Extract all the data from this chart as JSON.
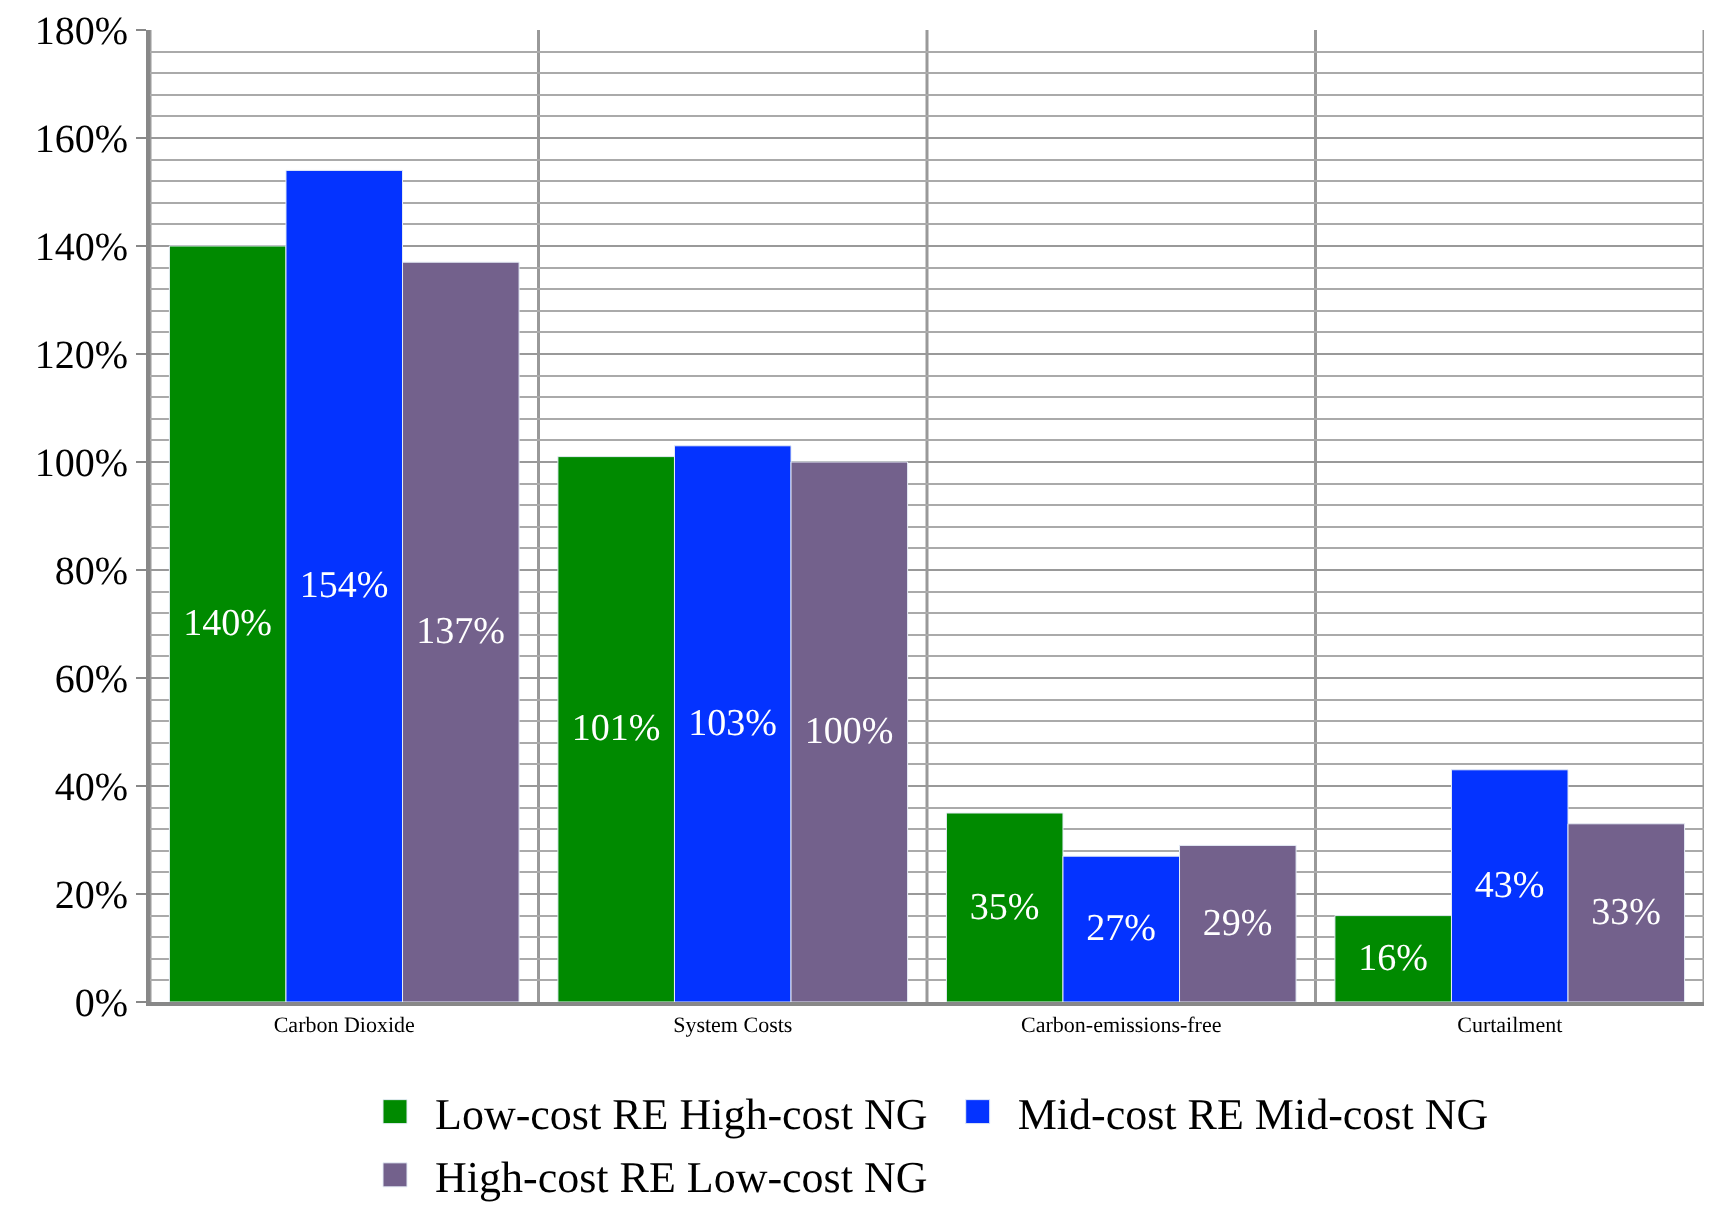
{
  "chart_data": {
    "type": "bar",
    "categories": [
      "Carbon Dioxide",
      "System Costs",
      "Carbon-emissions-free",
      "Curtailment"
    ],
    "series": [
      {
        "name": "Low-cost RE High-cost NG",
        "color": "#008a00",
        "values": [
          140,
          101,
          35,
          16
        ],
        "value_labels": [
          "140%",
          "101%",
          "35%",
          "16%"
        ]
      },
      {
        "name": "Mid-cost RE Mid-cost NG",
        "color": "#0433ff",
        "values": [
          154,
          103,
          27,
          43
        ],
        "value_labels": [
          "154%",
          "103%",
          "27%",
          "43%"
        ]
      },
      {
        "name": "High-cost RE Low-cost NG",
        "color": "#73618c",
        "values": [
          137,
          100,
          29,
          33
        ],
        "value_labels": [
          "137%",
          "100%",
          "29%",
          "33%"
        ]
      }
    ],
    "ylim": [
      0,
      180
    ],
    "yticks": [
      {
        "value": 0,
        "label": "0%"
      },
      {
        "value": 20,
        "label": "20%"
      },
      {
        "value": 40,
        "label": "40%"
      },
      {
        "value": 60,
        "label": "60%"
      },
      {
        "value": 80,
        "label": "80%"
      },
      {
        "value": 100,
        "label": "100%"
      },
      {
        "value": 120,
        "label": "120%"
      },
      {
        "value": 140,
        "label": "140%"
      },
      {
        "value": 160,
        "label": "160%"
      },
      {
        "value": 180,
        "label": "180%"
      }
    ],
    "grid": true,
    "legend": "bottom"
  }
}
